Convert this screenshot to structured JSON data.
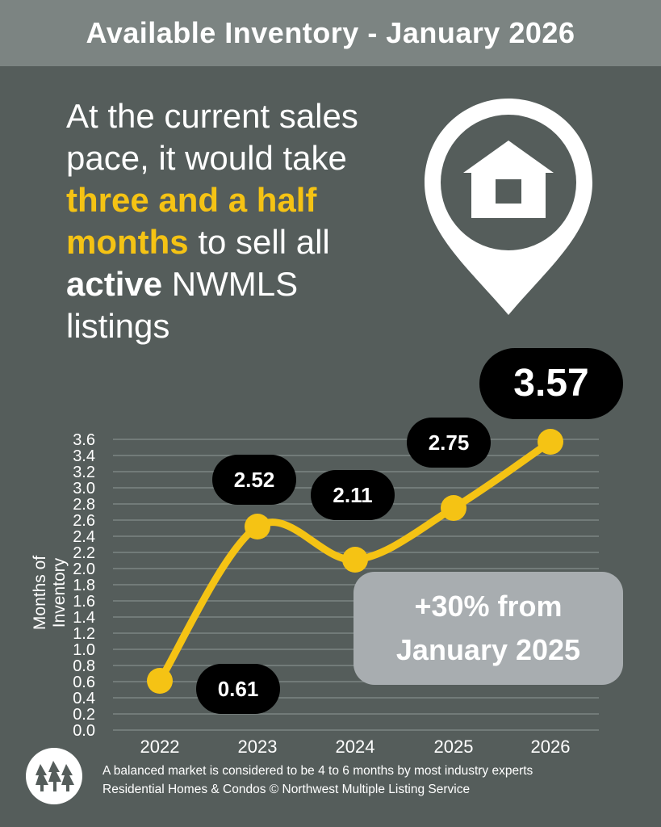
{
  "header": {
    "title": "Available Inventory - January 2026"
  },
  "headline": {
    "line1": "At the current sales",
    "line2": "pace, it would take",
    "highlight_a": "three and a half",
    "highlight_b": "months",
    "after_highlight": "to sell all",
    "bold_word": "active",
    "after_bold": "NWMLS",
    "last": "listings"
  },
  "colors": {
    "background": "#555d5b",
    "header": "#7c8482",
    "accent": "#f5c314",
    "callout": "#000000",
    "change_box": "#a8adb0"
  },
  "change": {
    "line1": "+30% from",
    "line2": "January 2025"
  },
  "footer": {
    "note": "A balanced market is considered to be 4 to 6 months by most industry experts",
    "credit": "Residential Homes & Condos © Northwest Multiple Listing Service",
    "logo_icon": "nwmls-logo"
  },
  "chart_data": {
    "type": "line",
    "title": "Available Inventory - January 2026",
    "xlabel": "",
    "ylabel": "Months of Inventory",
    "categories": [
      "2022",
      "2023",
      "2024",
      "2025",
      "2026"
    ],
    "values": [
      0.61,
      2.52,
      2.11,
      2.75,
      3.57
    ],
    "data_labels": [
      "0.61",
      "2.52",
      "2.11",
      "2.75",
      "3.57"
    ],
    "ylim": [
      0,
      3.6
    ],
    "yticks": [
      "0.0",
      "0.2",
      "0.4",
      "0.6",
      "0.8",
      "1.0",
      "1.2",
      "1.4",
      "1.6",
      "1.8",
      "2.0",
      "2.2",
      "2.4",
      "2.6",
      "2.8",
      "3.0",
      "3.2",
      "3.4",
      "3.6"
    ],
    "grid": true,
    "smooth": true
  }
}
